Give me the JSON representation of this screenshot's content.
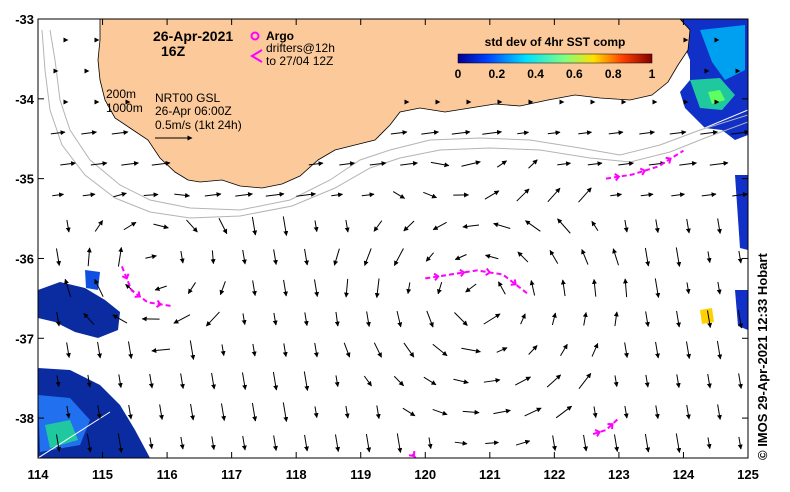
{
  "title": {
    "date": "26-Apr-2021",
    "hour": "16Z"
  },
  "legend": {
    "argo_label": "Argo",
    "drifters_line1": "drifters@12h",
    "drifters_line2": "to 27/04 12Z",
    "colorbar_title": "std dev of 4hr SST comp",
    "colorbar_ticks": [
      "0",
      "0.2",
      "0.4",
      "0.6",
      "0.8",
      "1"
    ],
    "depth_200": "200m",
    "depth_1000": "1000m",
    "model_name": "NRT00 GSL",
    "model_time": "26-Apr 06:00Z",
    "scale_label": "0.5m/s (1kt 24h)"
  },
  "axes": {
    "x_ticks": [
      "114",
      "115",
      "116",
      "117",
      "118",
      "119",
      "120",
      "121",
      "122",
      "123",
      "124",
      "125"
    ],
    "y_ticks": [
      "-33",
      "-34",
      "-35",
      "-36",
      "-37",
      "-38"
    ]
  },
  "credit": "© IMOS 29-Apr-2021 12:33 Hobart",
  "colors": {
    "land": "#fbc99a",
    "drifter": "#ff00ff",
    "contour": "#b4b4b4"
  },
  "map_data": {
    "lon_range": [
      114,
      125
    ],
    "lat_range": [
      -38.5,
      -33
    ],
    "drifter_tracks": [
      [
        [
          115.3,
          -36.1
        ],
        [
          115.45,
          -36.4
        ],
        [
          115.7,
          -36.55
        ],
        [
          116.1,
          -36.6
        ]
      ],
      [
        [
          120.0,
          -36.25
        ],
        [
          120.4,
          -36.2
        ],
        [
          120.8,
          -36.15
        ],
        [
          121.2,
          -36.2
        ],
        [
          121.6,
          -36.45
        ]
      ],
      [
        [
          122.8,
          -35.0
        ],
        [
          123.2,
          -34.95
        ],
        [
          123.6,
          -34.85
        ],
        [
          124.0,
          -34.65
        ]
      ],
      [
        [
          122.6,
          -38.2
        ],
        [
          122.8,
          -38.15
        ],
        [
          123.0,
          -38.0
        ]
      ],
      [
        [
          119.8,
          -38.45
        ],
        [
          119.85,
          -38.5
        ]
      ]
    ]
  }
}
